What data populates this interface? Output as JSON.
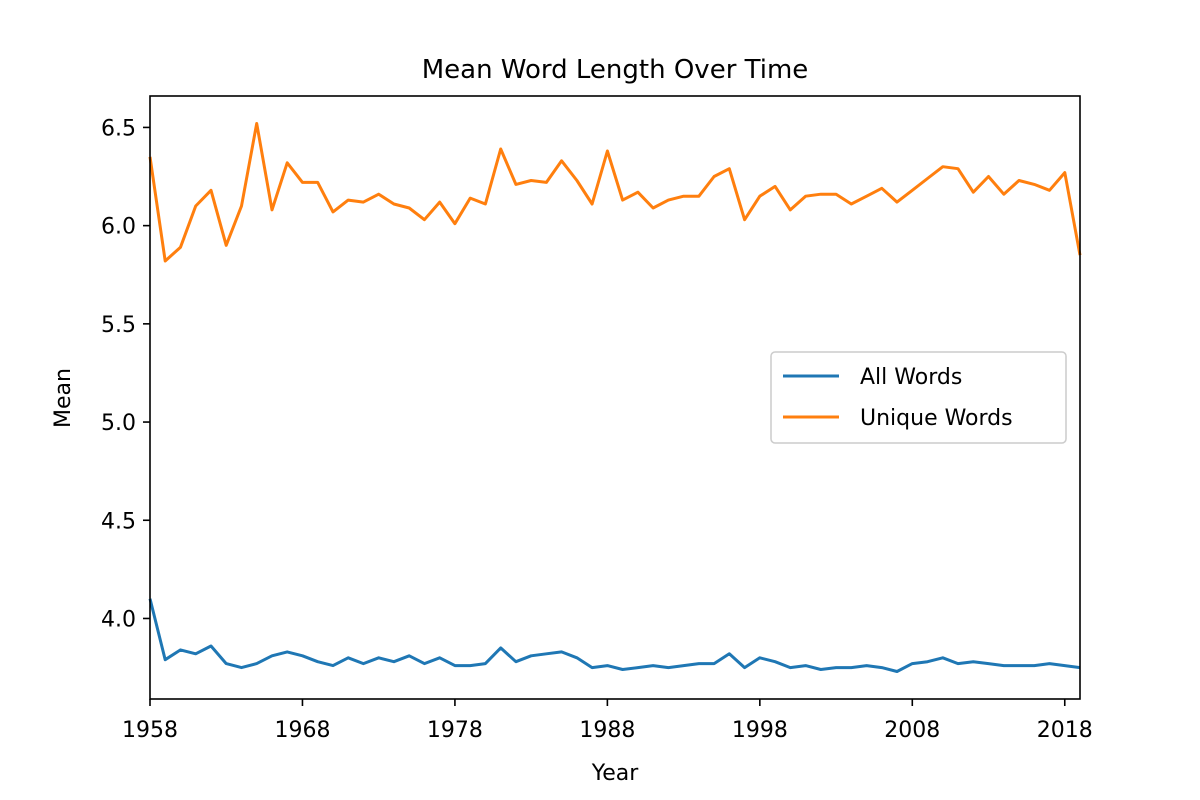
{
  "chart_data": {
    "type": "line",
    "title": "Mean Word Length Over Time",
    "xlabel": "Year",
    "ylabel": "Mean",
    "xlim": [
      1958,
      2019
    ],
    "ylim": [
      3.59,
      6.66
    ],
    "x_ticks": [
      1958,
      1968,
      1978,
      1988,
      1998,
      2008,
      2018
    ],
    "y_ticks": [
      4.0,
      4.5,
      5.0,
      5.5,
      6.0,
      6.5
    ],
    "grid": false,
    "legend_position": "center-right",
    "x": [
      1958,
      1959,
      1960,
      1961,
      1962,
      1963,
      1964,
      1965,
      1966,
      1967,
      1968,
      1969,
      1970,
      1971,
      1972,
      1973,
      1974,
      1975,
      1976,
      1977,
      1978,
      1979,
      1980,
      1981,
      1982,
      1983,
      1984,
      1985,
      1986,
      1987,
      1988,
      1989,
      1990,
      1991,
      1992,
      1993,
      1994,
      1995,
      1996,
      1997,
      1998,
      1999,
      2000,
      2001,
      2002,
      2003,
      2004,
      2005,
      2006,
      2007,
      2008,
      2009,
      2010,
      2011,
      2012,
      2013,
      2014,
      2015,
      2016,
      2017,
      2018,
      2019
    ],
    "series": [
      {
        "name": "All Words",
        "color": "#1f77b4",
        "values": [
          4.1,
          3.79,
          3.84,
          3.82,
          3.86,
          3.77,
          3.75,
          3.77,
          3.81,
          3.83,
          3.81,
          3.78,
          3.76,
          3.8,
          3.77,
          3.8,
          3.78,
          3.81,
          3.77,
          3.8,
          3.76,
          3.76,
          3.77,
          3.85,
          3.78,
          3.81,
          3.82,
          3.83,
          3.8,
          3.75,
          3.76,
          3.74,
          3.75,
          3.76,
          3.75,
          3.76,
          3.77,
          3.77,
          3.82,
          3.75,
          3.8,
          3.78,
          3.75,
          3.76,
          3.74,
          3.75,
          3.75,
          3.76,
          3.75,
          3.73,
          3.77,
          3.78,
          3.8,
          3.77,
          3.78,
          3.77,
          3.76,
          3.76,
          3.76,
          3.77,
          3.76,
          3.75
        ]
      },
      {
        "name": "Unique Words",
        "color": "#ff7f0e",
        "values": [
          6.35,
          5.82,
          5.89,
          6.1,
          6.18,
          5.9,
          6.1,
          6.52,
          6.08,
          6.32,
          6.22,
          6.22,
          6.07,
          6.13,
          6.12,
          6.16,
          6.11,
          6.09,
          6.03,
          6.12,
          6.01,
          6.14,
          6.11,
          6.39,
          6.21,
          6.23,
          6.22,
          6.33,
          6.23,
          6.11,
          6.38,
          6.13,
          6.17,
          6.09,
          6.13,
          6.15,
          6.15,
          6.25,
          6.29,
          6.03,
          6.15,
          6.2,
          6.08,
          6.15,
          6.16,
          6.16,
          6.11,
          6.15,
          6.19,
          6.12,
          6.18,
          6.24,
          6.3,
          6.29,
          6.17,
          6.25,
          6.16,
          6.23,
          6.21,
          6.18,
          6.27,
          5.85
        ]
      }
    ]
  }
}
